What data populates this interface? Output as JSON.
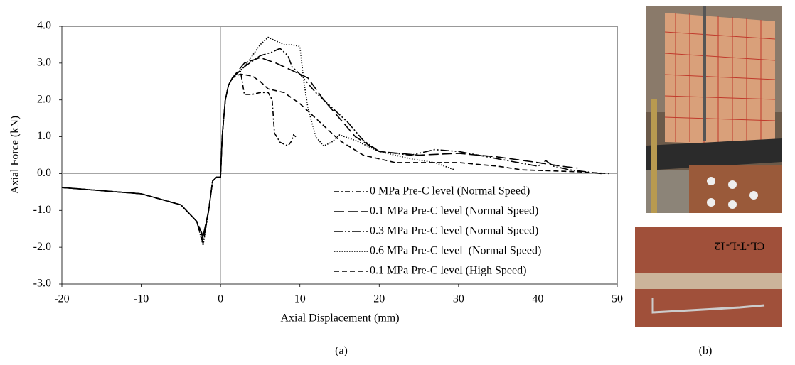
{
  "chart_data": {
    "type": "line",
    "x_label": "Axial Displacement (mm)",
    "y_label": "Axial Force (kN)",
    "xlim": [
      -20,
      50
    ],
    "xticks": [
      -20,
      -10,
      0,
      10,
      20,
      30,
      40,
      50
    ],
    "ylim": [
      -3,
      4
    ],
    "yticks": [
      {
        "value": -3,
        "label": "-3.0"
      },
      {
        "value": -2,
        "label": "-2.0"
      },
      {
        "value": -1,
        "label": "-1.0"
      },
      {
        "value": 0,
        "label": "0.0"
      },
      {
        "value": 1,
        "label": "1.0"
      },
      {
        "value": 2,
        "label": "2.0"
      },
      {
        "value": 3,
        "label": "3.0"
      },
      {
        "value": 4,
        "label": "4.0"
      }
    ],
    "legend": "lower right",
    "series": [
      {
        "name": "0 MPa Pre-C level (Normal Speed)",
        "color": "#000000",
        "dash": "7,3,2,3",
        "x": [
          -20,
          -10,
          -5,
          -3,
          -2.2,
          -1.5,
          -1,
          -0.5,
          0,
          0.2,
          0.6,
          1,
          1.5,
          2.5,
          3,
          4,
          5,
          6,
          6.5,
          6.8,
          7.5,
          8.5,
          9,
          9.2,
          9.5
        ],
        "values": [
          -0.38,
          -0.55,
          -0.85,
          -1.3,
          -1.85,
          -1.0,
          -0.2,
          -0.1,
          -0.1,
          1.0,
          2.0,
          2.4,
          2.6,
          2.8,
          2.15,
          2.15,
          2.2,
          2.2,
          2.0,
          1.1,
          0.85,
          0.75,
          0.9,
          1.05,
          1.0
        ]
      },
      {
        "name": "0.1 MPa Pre-C level (Normal Speed)",
        "color": "#000000",
        "dash": "14,5",
        "x": [
          -20,
          -10,
          -5,
          -3,
          -2.2,
          -1.5,
          -1,
          -0.5,
          0,
          0.2,
          0.6,
          1,
          1.5,
          3,
          5,
          7,
          9,
          11,
          13,
          15,
          17,
          20,
          25,
          30,
          35,
          40,
          43,
          45
        ],
        "values": [
          -0.38,
          -0.55,
          -0.85,
          -1.3,
          -1.7,
          -1.0,
          -0.2,
          -0.1,
          -0.1,
          1.0,
          2.0,
          2.4,
          2.6,
          3.0,
          3.15,
          3.0,
          2.8,
          2.6,
          2.0,
          1.5,
          1.0,
          0.6,
          0.5,
          0.55,
          0.45,
          0.3,
          0.2,
          0.15
        ]
      },
      {
        "name": "0.3 MPa Pre-C level (Normal Speed)",
        "color": "#000000",
        "dash": "12,3,2,3,2,3",
        "x": [
          -20,
          -10,
          -5,
          -3,
          -2.2,
          -1.5,
          -1,
          -0.5,
          0,
          0.2,
          0.6,
          1,
          1.5,
          3,
          5,
          6.5,
          7.5,
          8.5,
          9,
          10,
          12,
          14,
          16,
          18,
          20,
          24,
          27,
          30,
          35,
          40,
          41,
          42,
          44,
          48
        ],
        "values": [
          -0.38,
          -0.55,
          -0.85,
          -1.3,
          -1.9,
          -1.0,
          -0.2,
          -0.1,
          -0.1,
          1.0,
          2.0,
          2.4,
          2.6,
          2.9,
          3.2,
          3.3,
          3.4,
          3.2,
          2.9,
          2.7,
          2.2,
          1.8,
          1.4,
          0.9,
          0.6,
          0.5,
          0.65,
          0.6,
          0.4,
          0.2,
          0.35,
          0.2,
          0.1,
          0.0
        ]
      },
      {
        "name": "0.6 MPa Pre-C level  (Normal Speed)",
        "color": "#000000",
        "dash": "1.5,2",
        "x": [
          -20,
          -10,
          -5,
          -3,
          -2.2,
          -1.5,
          -1,
          -0.5,
          0,
          0.2,
          0.6,
          1,
          1.5,
          3,
          4,
          5,
          6,
          7,
          8,
          9,
          10,
          10.5,
          11,
          12,
          13,
          14,
          15,
          17,
          20,
          24,
          27,
          29.5
        ],
        "values": [
          -0.38,
          -0.55,
          -0.85,
          -1.3,
          -1.95,
          -1.0,
          -0.2,
          -0.1,
          -0.1,
          1.0,
          2.0,
          2.4,
          2.6,
          2.9,
          3.2,
          3.5,
          3.7,
          3.6,
          3.5,
          3.5,
          3.45,
          2.5,
          1.8,
          1.0,
          0.75,
          0.85,
          1.05,
          0.9,
          0.6,
          0.4,
          0.3,
          0.1
        ]
      },
      {
        "name": "0.1 MPa Pre-C level (High Speed)",
        "color": "#000000",
        "dash": "7,4",
        "x": [
          -20,
          -10,
          -5,
          -3,
          -2.2,
          -1.5,
          -1,
          -0.5,
          0,
          0.2,
          0.6,
          1,
          1.5,
          2.5,
          4,
          5,
          6,
          8,
          10,
          13,
          15,
          18,
          22,
          30,
          35,
          38,
          45,
          49
        ],
        "values": [
          -0.38,
          -0.55,
          -0.85,
          -1.3,
          -1.75,
          -1.0,
          -0.2,
          -0.1,
          -0.1,
          1.0,
          2.0,
          2.4,
          2.6,
          2.7,
          2.65,
          2.5,
          2.3,
          2.2,
          1.9,
          1.3,
          0.9,
          0.5,
          0.3,
          0.3,
          0.2,
          0.1,
          0.05,
          0.0
        ]
      }
    ]
  },
  "captions": [
    "(a)",
    "(b)"
  ],
  "photo_text": "CL-T-L-12"
}
